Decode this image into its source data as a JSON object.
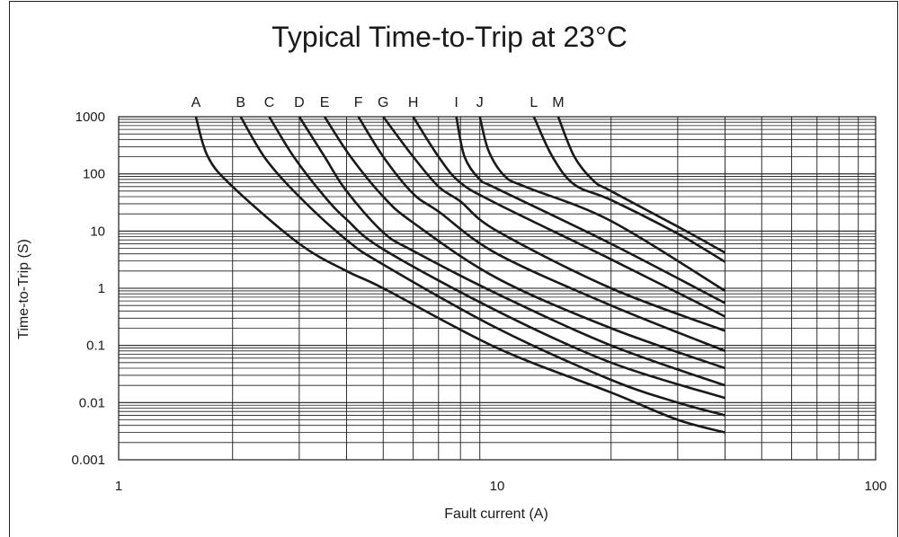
{
  "chart_data": {
    "type": "line",
    "title": "Typical Time-to-Trip at 23°C",
    "xlabel": "Fault current (A)",
    "ylabel": "Time-to-Trip (S)",
    "x_scale": "log",
    "y_scale": "log",
    "xlim": [
      1,
      100
    ],
    "ylim": [
      0.001,
      1000
    ],
    "x_ticks": [
      {
        "value": 1,
        "label": "1"
      },
      {
        "value": 10,
        "label": "10"
      },
      {
        "value": 100,
        "label": "100"
      }
    ],
    "y_ticks": [
      {
        "value": 1000,
        "label": "1000"
      },
      {
        "value": 100,
        "label": "100"
      },
      {
        "value": 10,
        "label": "10"
      },
      {
        "value": 1,
        "label": "1"
      },
      {
        "value": 0.1,
        "label": "0.1"
      },
      {
        "value": 0.01,
        "label": "0.01"
      },
      {
        "value": 0.001,
        "label": "0.001"
      }
    ],
    "grid": true,
    "line_color": "#1a1a1a",
    "series": [
      {
        "name": "A",
        "x": [
          1.6,
          1.72,
          2.0,
          3.0,
          4.0,
          5.0,
          10,
          20,
          30,
          40
        ],
        "y": [
          1000,
          200,
          60,
          6,
          2,
          1,
          0.09,
          0.015,
          0.005,
          0.003
        ]
      },
      {
        "name": "B",
        "x": [
          2.1,
          2.45,
          3.0,
          4.0,
          5.0,
          10,
          20,
          30,
          40
        ],
        "y": [
          1000,
          180,
          40,
          7,
          2.6,
          0.2,
          0.025,
          0.01,
          0.006
        ]
      },
      {
        "name": "C",
        "x": [
          2.5,
          2.9,
          3.5,
          4.0,
          5.0,
          10,
          20,
          40
        ],
        "y": [
          1000,
          200,
          40,
          16,
          4.8,
          0.4,
          0.05,
          0.012
        ]
      },
      {
        "name": "D",
        "x": [
          3.0,
          3.5,
          4.0,
          5.0,
          6.0,
          10,
          20,
          40
        ],
        "y": [
          1000,
          200,
          50,
          9.5,
          4.5,
          0.8,
          0.1,
          0.02
        ]
      },
      {
        "name": "E",
        "x": [
          3.5,
          4.1,
          5.0,
          6.0,
          10,
          20,
          40
        ],
        "y": [
          1000,
          200,
          40,
          14,
          1.5,
          0.2,
          0.04
        ]
      },
      {
        "name": "F",
        "x": [
          4.3,
          5.0,
          6.0,
          7.0,
          10,
          20,
          40
        ],
        "y": [
          1000,
          200,
          45,
          22,
          4.0,
          0.5,
          0.08
        ]
      },
      {
        "name": "G",
        "x": [
          5.0,
          6.0,
          7.0,
          8.0,
          10,
          20,
          40
        ],
        "y": [
          1000,
          200,
          60,
          33,
          10,
          1.0,
          0.18
        ]
      },
      {
        "name": "H",
        "x": [
          6.0,
          7.0,
          8.0,
          10,
          20,
          40
        ],
        "y": [
          1000,
          200,
          70,
          30,
          3.2,
          0.32
        ]
      },
      {
        "name": "I",
        "x": [
          7.8,
          8.2,
          9.0,
          10,
          20,
          40
        ],
        "y": [
          1000,
          200,
          80,
          55,
          6,
          0.55
        ]
      },
      {
        "name": "J",
        "x": [
          9.0,
          9.5,
          10.5,
          12.0,
          20,
          40
        ],
        "y": [
          1000,
          250,
          90,
          58,
          15,
          0.9
        ]
      },
      {
        "name": "L",
        "x": [
          12.5,
          14.0,
          16.0,
          20,
          30,
          40
        ],
        "y": [
          1000,
          200,
          65,
          35,
          9,
          2.9
        ]
      },
      {
        "name": "M",
        "x": [
          14.5,
          16.0,
          18.0,
          20,
          30,
          40
        ],
        "y": [
          1000,
          200,
          75,
          50,
          12,
          4.2
        ]
      }
    ]
  }
}
